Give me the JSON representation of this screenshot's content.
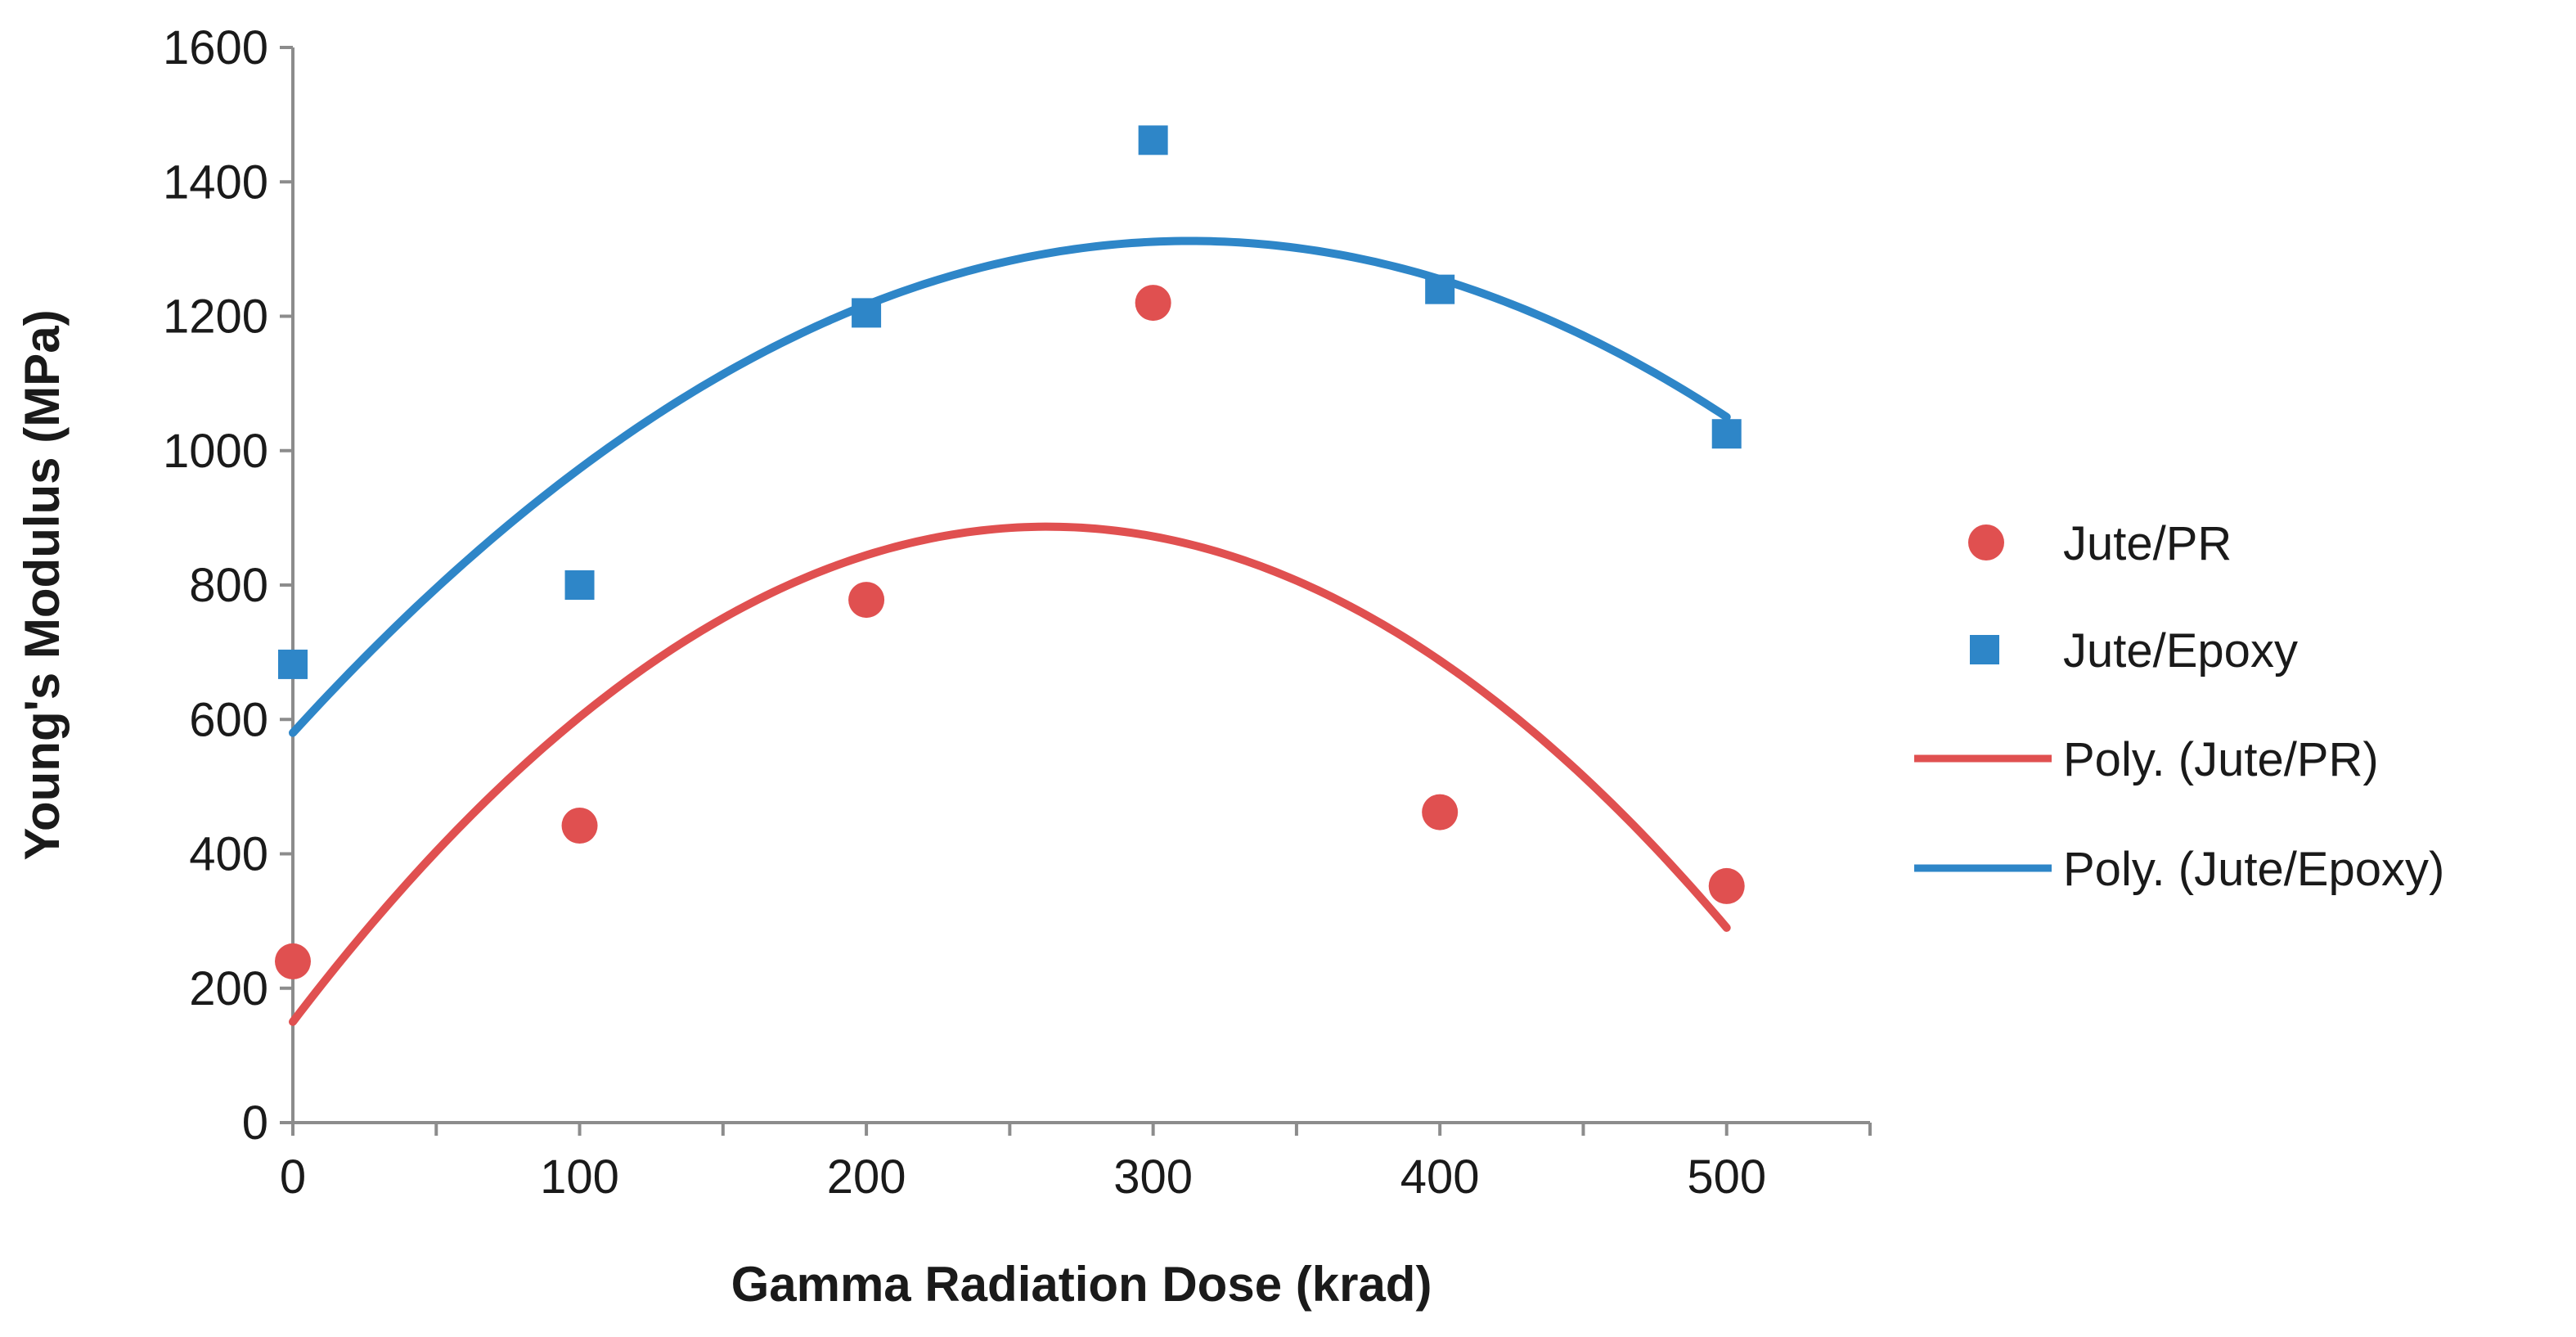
{
  "chart_data": {
    "type": "scatter",
    "title": "",
    "xlabel": "Gamma Radiation Dose (krad)",
    "ylabel": "Young's Modulus (MPa)",
    "xlim": [
      0,
      550
    ],
    "ylim": [
      0,
      1600
    ],
    "xticks": [
      0,
      100,
      200,
      300,
      400,
      500
    ],
    "yticks": [
      0,
      200,
      400,
      600,
      800,
      1000,
      1200,
      1400,
      1600
    ],
    "x_tick_labels": [
      "0",
      "100",
      "200",
      "300",
      "400",
      "500"
    ],
    "y_tick_labels": [
      "0",
      "200",
      "400",
      "600",
      "800",
      "1000",
      "1200",
      "1400",
      "1600"
    ],
    "grid": false,
    "legend_position": "right",
    "series": [
      {
        "name": "Jute/PR",
        "marker": "circle",
        "color": "#e05050",
        "x": [
          0,
          100,
          200,
          300,
          400,
          500
        ],
        "values": [
          240,
          442,
          778,
          1220,
          462,
          352
        ]
      },
      {
        "name": "Jute/Epoxy",
        "marker": "square",
        "color": "#2e86c8",
        "x": [
          0,
          100,
          200,
          300,
          400,
          500
        ],
        "values": [
          682,
          800,
          1205,
          1462,
          1240,
          1025
        ]
      }
    ],
    "trendlines": [
      {
        "name": "Poly. (Jute/PR)",
        "type": "polynomial",
        "order": 2,
        "color": "#e05050",
        "coefficients": [
          150,
          5.6,
          -0.01064
        ],
        "x_range": [
          0,
          500
        ]
      },
      {
        "name": "Poly. (Jute/Epoxy)",
        "type": "polynomial",
        "order": 2,
        "color": "#2e86c8",
        "coefficients": [
          580,
          4.68,
          -0.00748
        ],
        "x_range": [
          0,
          500
        ]
      }
    ]
  }
}
